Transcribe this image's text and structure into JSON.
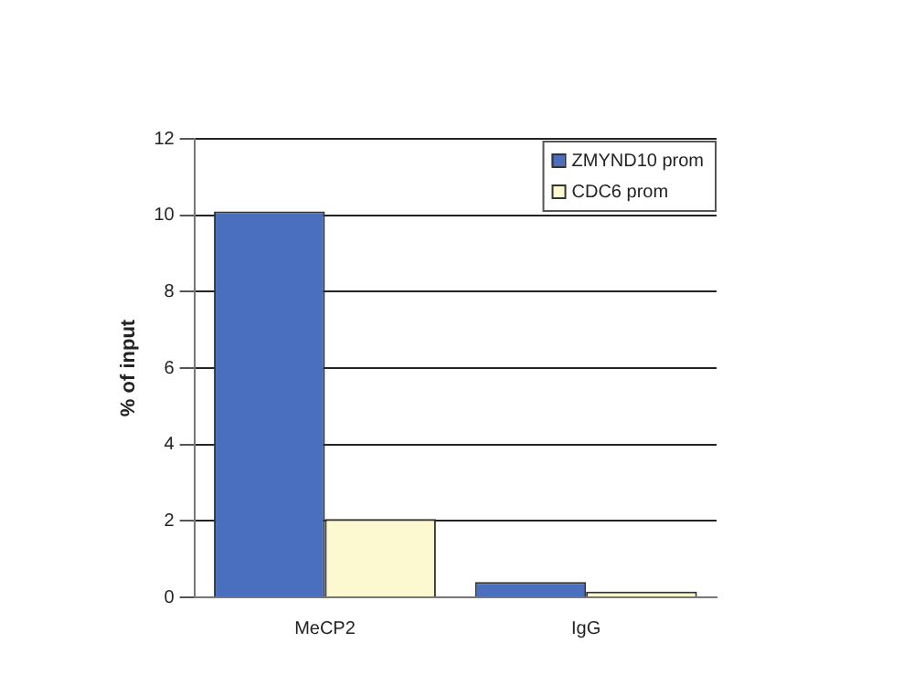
{
  "chart_data": {
    "type": "bar",
    "ylabel": "% of input",
    "categories": [
      "MeCP2",
      "IgG"
    ],
    "series": [
      {
        "name": "ZMYND10 prom",
        "color": "#4a6fbf",
        "values": [
          10.1,
          0.4
        ]
      },
      {
        "name": "CDC6 prom",
        "color": "#fcf8cf",
        "values": [
          2.05,
          0.15
        ]
      }
    ],
    "ylim": [
      0,
      12
    ],
    "yticks": [
      0,
      2,
      4,
      6,
      8,
      10,
      12
    ],
    "grid": "y",
    "legend": "top right"
  }
}
